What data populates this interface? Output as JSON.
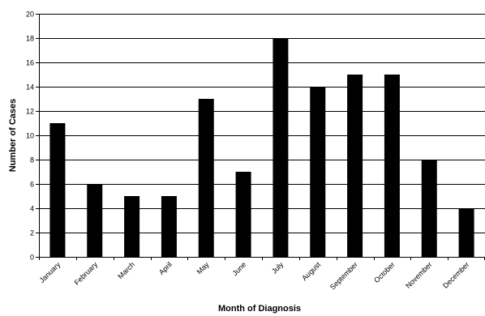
{
  "chart_data": {
    "type": "bar",
    "title": "",
    "xlabel": "Month of Diagnosis",
    "ylabel": "Number of Cases",
    "categories": [
      "January",
      "February",
      "March",
      "April",
      "May",
      "June",
      "July",
      "August",
      "September",
      "October",
      "November",
      "December"
    ],
    "values": [
      11,
      6,
      5,
      5,
      13,
      7,
      18,
      14,
      15,
      15,
      8,
      4
    ],
    "ylim": [
      0,
      20
    ],
    "yticks": [
      0,
      2,
      4,
      6,
      8,
      10,
      12,
      14,
      16,
      18,
      20
    ],
    "grid": "horizontal",
    "legend": "none",
    "bar_color": "#000000",
    "grid_color": "#000000"
  }
}
